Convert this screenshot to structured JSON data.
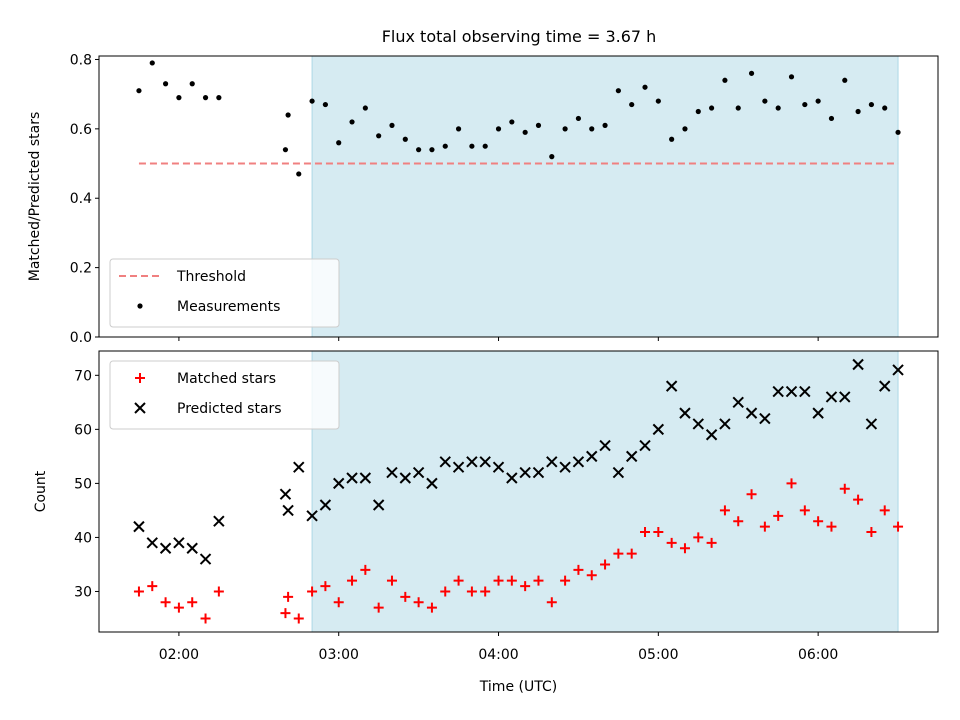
{
  "title": "Flux total observing time = 3.67 h",
  "colors": {
    "shade": "#add8e6",
    "threshold": "#f08080",
    "matched": "#ff0000",
    "predicted": "#000000",
    "measurement": "#000000"
  },
  "chart_data": [
    {
      "type": "scatter",
      "ylabel": "Matched/Predicted stars",
      "ylim": [
        0,
        0.81
      ],
      "yticks": [
        0.0,
        0.2,
        0.4,
        0.6,
        0.8
      ],
      "yticklabels": [
        "0.0",
        "0.2",
        "0.4",
        "0.6",
        "0.8"
      ],
      "xlim": [
        "01:30",
        "06:45"
      ],
      "xticks": [
        "02:00",
        "03:00",
        "04:00",
        "05:00",
        "06:00"
      ],
      "shaded_span": [
        "02:50",
        "06:30"
      ],
      "legend": {
        "placement": "lower-left",
        "entries": [
          "Threshold",
          "Measurements"
        ]
      },
      "threshold": {
        "name": "Threshold",
        "value": 0.5,
        "x_range": [
          "01:45",
          "06:30"
        ]
      },
      "series": [
        {
          "name": "Measurements",
          "x": [
            "01:45",
            "01:50",
            "01:55",
            "02:00",
            "02:05",
            "02:10",
            "02:15",
            "02:40",
            "02:41",
            "02:45",
            "02:50",
            "02:55",
            "03:00",
            "03:05",
            "03:10",
            "03:15",
            "03:20",
            "03:25",
            "03:30",
            "03:35",
            "03:40",
            "03:45",
            "03:50",
            "03:55",
            "04:00",
            "04:05",
            "04:10",
            "04:15",
            "04:20",
            "04:25",
            "04:30",
            "04:35",
            "04:40",
            "04:45",
            "04:50",
            "04:55",
            "05:00",
            "05:05",
            "05:10",
            "05:15",
            "05:20",
            "05:25",
            "05:30",
            "05:35",
            "05:40",
            "05:45",
            "05:50",
            "05:55",
            "06:00",
            "06:05",
            "06:10",
            "06:15",
            "06:20",
            "06:25",
            "06:30"
          ],
          "y": [
            0.71,
            0.79,
            0.73,
            0.69,
            0.73,
            0.69,
            0.69,
            0.54,
            0.64,
            0.47,
            0.68,
            0.67,
            0.56,
            0.62,
            0.66,
            0.58,
            0.61,
            0.57,
            0.54,
            0.54,
            0.55,
            0.6,
            0.55,
            0.55,
            0.6,
            0.62,
            0.59,
            0.61,
            0.52,
            0.6,
            0.63,
            0.6,
            0.61,
            0.71,
            0.67,
            0.72,
            0.68,
            0.57,
            0.6,
            0.65,
            0.66,
            0.74,
            0.66,
            0.76,
            0.68,
            0.66,
            0.75,
            0.67,
            0.68,
            0.63,
            0.74,
            0.65,
            0.67,
            0.66,
            0.59
          ]
        }
      ]
    },
    {
      "type": "scatter",
      "ylabel": "Count",
      "xlabel": "Time (UTC)",
      "ylim": [
        22.5,
        74.5
      ],
      "yticks": [
        30,
        40,
        50,
        60,
        70
      ],
      "yticklabels": [
        "30",
        "40",
        "50",
        "60",
        "70"
      ],
      "xlim": [
        "01:30",
        "06:45"
      ],
      "xticks": [
        "02:00",
        "03:00",
        "04:00",
        "05:00",
        "06:00"
      ],
      "xticklabels": [
        "02:00",
        "03:00",
        "04:00",
        "05:00",
        "06:00"
      ],
      "shaded_span": [
        "02:50",
        "06:30"
      ],
      "legend": {
        "placement": "top-left",
        "entries": [
          "Matched stars",
          "Predicted stars"
        ]
      },
      "series": [
        {
          "name": "Matched stars",
          "marker": "plus",
          "x": [
            "01:45",
            "01:50",
            "01:55",
            "02:00",
            "02:05",
            "02:10",
            "02:15",
            "02:40",
            "02:41",
            "02:45",
            "02:50",
            "02:55",
            "03:00",
            "03:05",
            "03:10",
            "03:15",
            "03:20",
            "03:25",
            "03:30",
            "03:35",
            "03:40",
            "03:45",
            "03:50",
            "03:55",
            "04:00",
            "04:05",
            "04:10",
            "04:15",
            "04:20",
            "04:25",
            "04:30",
            "04:35",
            "04:40",
            "04:45",
            "04:50",
            "04:55",
            "05:00",
            "05:05",
            "05:10",
            "05:15",
            "05:20",
            "05:25",
            "05:30",
            "05:35",
            "05:40",
            "05:45",
            "05:50",
            "05:55",
            "06:00",
            "06:05",
            "06:10",
            "06:15",
            "06:20",
            "06:25",
            "06:30"
          ],
          "y": [
            30,
            31,
            28,
            27,
            28,
            25,
            30,
            26,
            29,
            25,
            30,
            31,
            28,
            32,
            34,
            27,
            32,
            29,
            28,
            27,
            30,
            32,
            30,
            30,
            32,
            32,
            31,
            32,
            28,
            32,
            34,
            33,
            35,
            37,
            37,
            41,
            41,
            39,
            38,
            40,
            39,
            45,
            43,
            48,
            42,
            44,
            50,
            45,
            43,
            42,
            49,
            47,
            41,
            45,
            42
          ]
        },
        {
          "name": "Predicted stars",
          "marker": "x",
          "x": [
            "01:45",
            "01:50",
            "01:55",
            "02:00",
            "02:05",
            "02:10",
            "02:15",
            "02:40",
            "02:41",
            "02:45",
            "02:50",
            "02:55",
            "03:00",
            "03:05",
            "03:10",
            "03:15",
            "03:20",
            "03:25",
            "03:30",
            "03:35",
            "03:40",
            "03:45",
            "03:50",
            "03:55",
            "04:00",
            "04:05",
            "04:10",
            "04:15",
            "04:20",
            "04:25",
            "04:30",
            "04:35",
            "04:40",
            "04:45",
            "04:50",
            "04:55",
            "05:00",
            "05:05",
            "05:10",
            "05:15",
            "05:20",
            "05:25",
            "05:30",
            "05:35",
            "05:40",
            "05:45",
            "05:50",
            "05:55",
            "06:00",
            "06:05",
            "06:10",
            "06:15",
            "06:20",
            "06:25",
            "06:30"
          ],
          "y": [
            42,
            39,
            38,
            39,
            38,
            36,
            43,
            48,
            45,
            53,
            44,
            46,
            50,
            51,
            51,
            46,
            52,
            51,
            52,
            50,
            54,
            53,
            54,
            54,
            53,
            51,
            52,
            52,
            54,
            53,
            54,
            55,
            57,
            52,
            55,
            57,
            60,
            68,
            63,
            61,
            59,
            61,
            65,
            63,
            62,
            67,
            67,
            67,
            63,
            66,
            66,
            72,
            61,
            68,
            71
          ]
        }
      ]
    }
  ]
}
